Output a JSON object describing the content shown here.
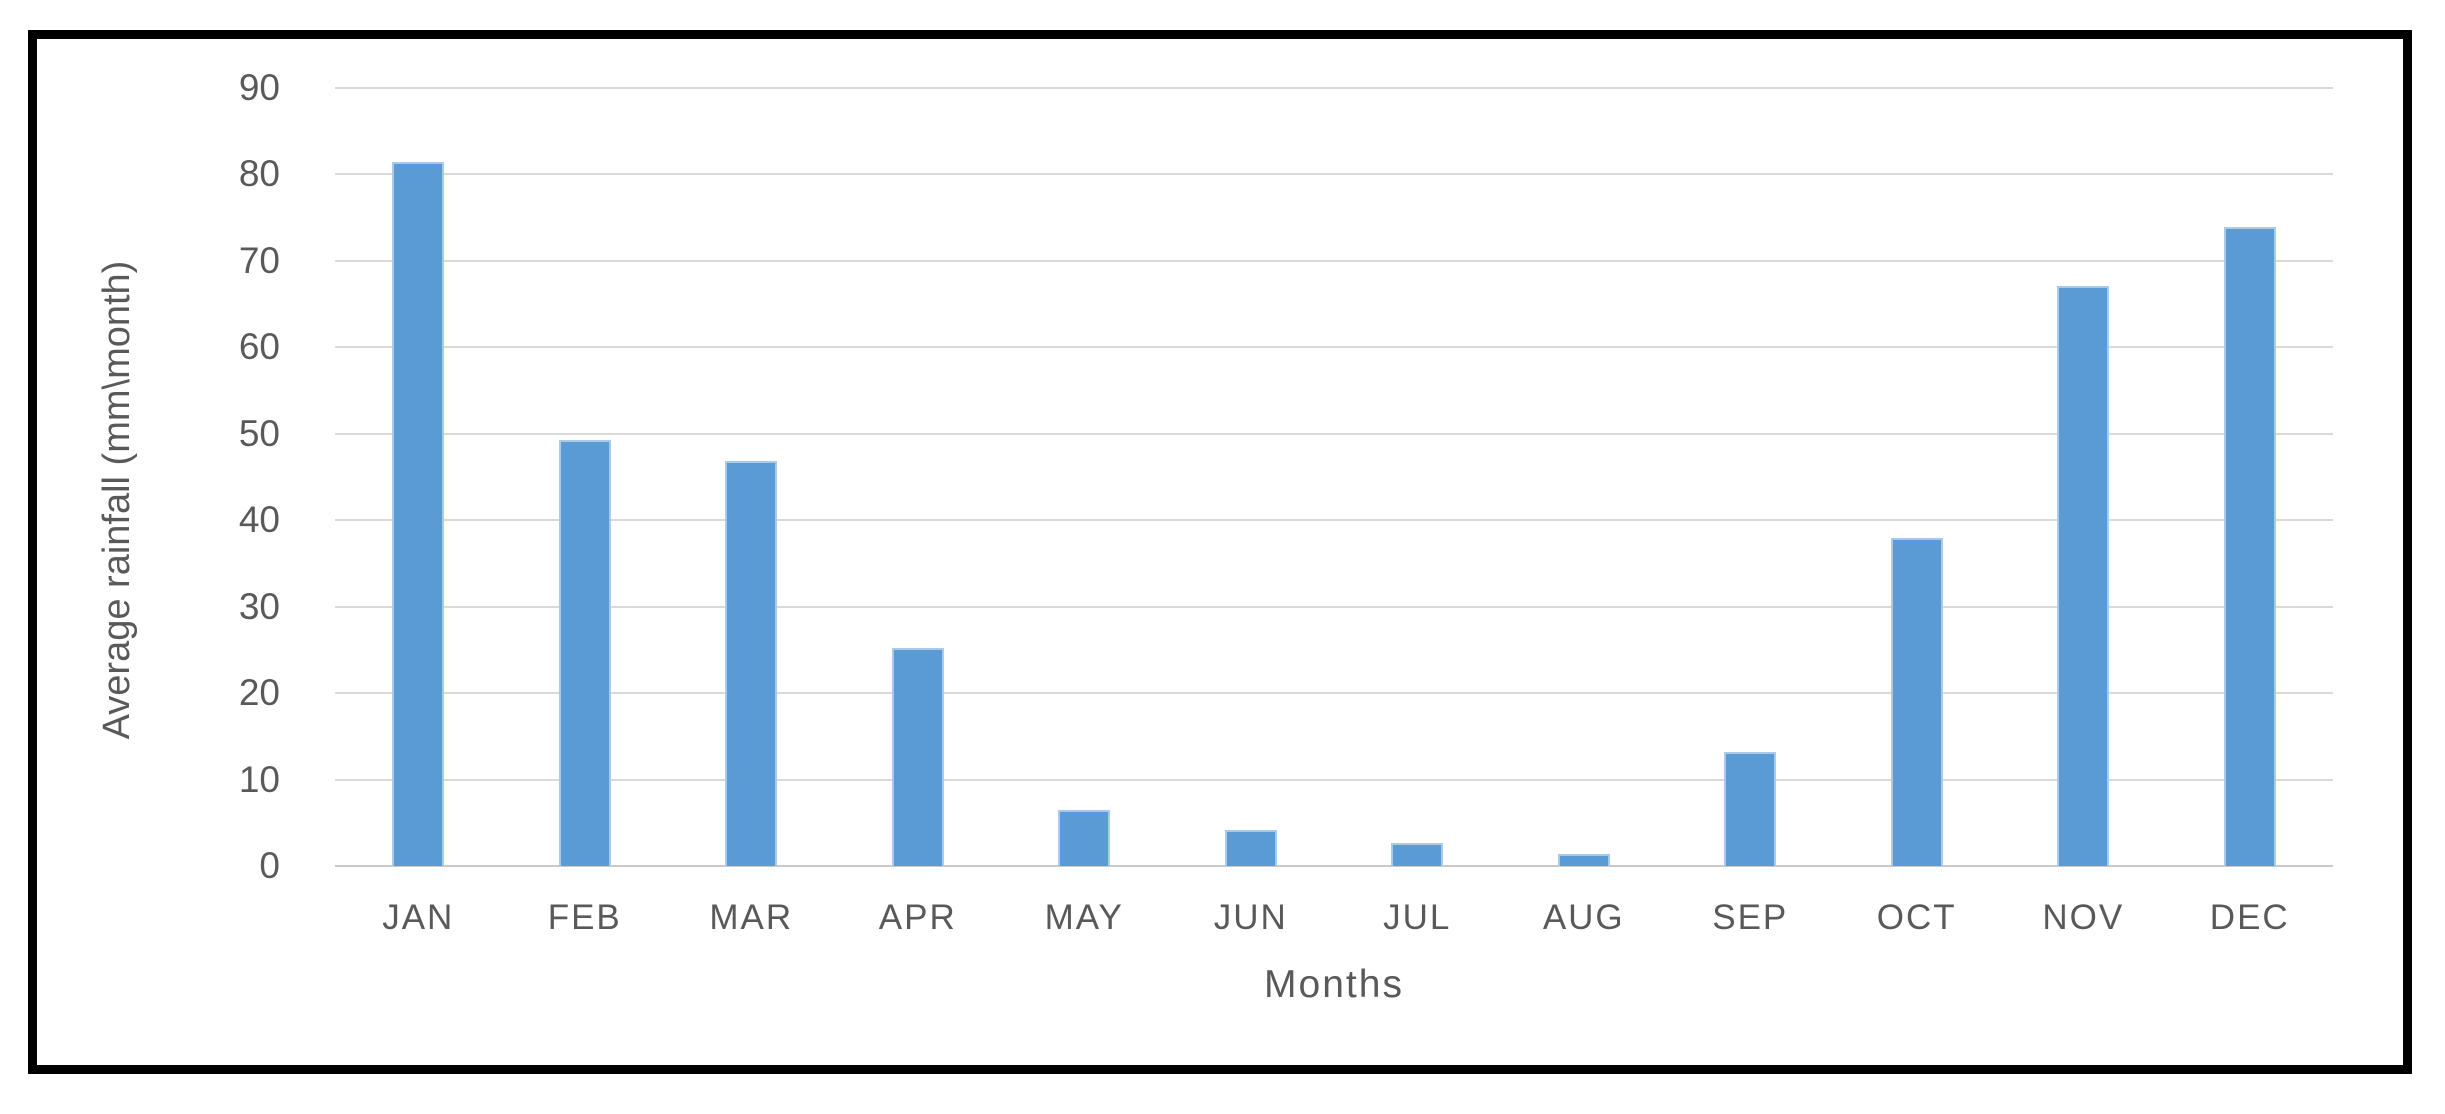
{
  "figure": {
    "background": "#ffffff",
    "border_color": "#000000"
  },
  "chart_data": {
    "type": "bar",
    "title": "",
    "categories": [
      "JAN",
      "FEB",
      "MAR",
      "APR",
      "MAY",
      "JUN",
      "JUL",
      "AUG",
      "SEP",
      "OCT",
      "NOV",
      "DEC"
    ],
    "values": [
      81.4,
      49.3,
      46.8,
      25.2,
      6.5,
      4.2,
      2.7,
      1.4,
      13.2,
      37.9,
      67.1,
      73.9
    ],
    "xlabel": "Months",
    "ylabel": "Average rainfall (mm\\month)",
    "ylim": [
      0,
      90
    ],
    "yticks": [
      0,
      10,
      20,
      30,
      40,
      50,
      60,
      70,
      80,
      90
    ],
    "grid": true,
    "legend": false,
    "bar_color": "#5b9bd5",
    "bar_edge_color": "#a9cbea",
    "gridline_color": "#d9d9d9",
    "axis_text_color": "#595959"
  }
}
